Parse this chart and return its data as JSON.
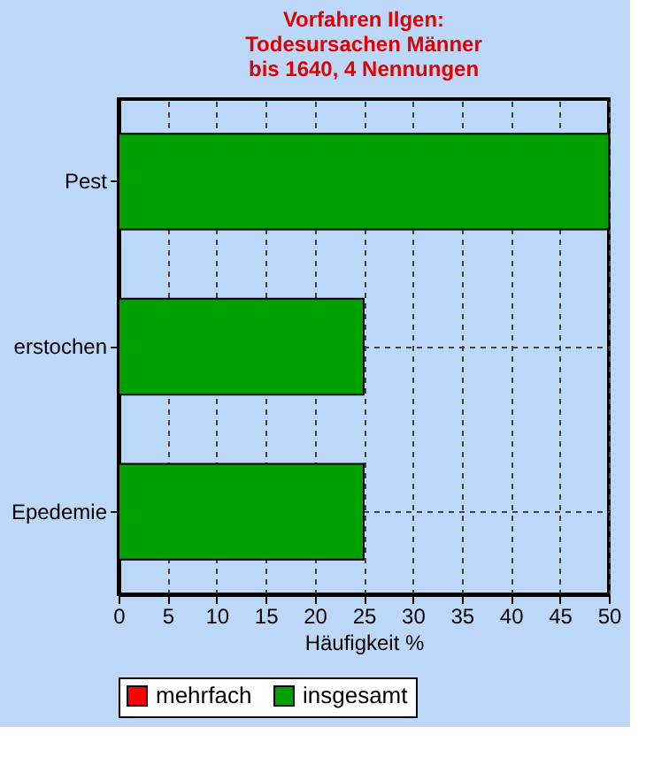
{
  "chart_data": {
    "type": "bar",
    "orientation": "horizontal",
    "title": "Vorfahren Ilgen:\nTodesursachen Männer\nbis 1640, 4 Nennungen",
    "xlabel": "Häufigkeit %",
    "categories": [
      "Pest",
      "erstochen",
      "Epedemie"
    ],
    "series": [
      {
        "name": "mehrfach",
        "color": "#ff0000",
        "values": [
          null,
          null,
          null
        ]
      },
      {
        "name": "insgesamt",
        "color": "#00a000",
        "values": [
          50,
          25,
          25
        ]
      }
    ],
    "xlim": [
      0,
      50
    ],
    "xticks": [
      0,
      5,
      10,
      15,
      20,
      25,
      30,
      35,
      40,
      45,
      50
    ],
    "grid": true,
    "legend": "bottom"
  }
}
